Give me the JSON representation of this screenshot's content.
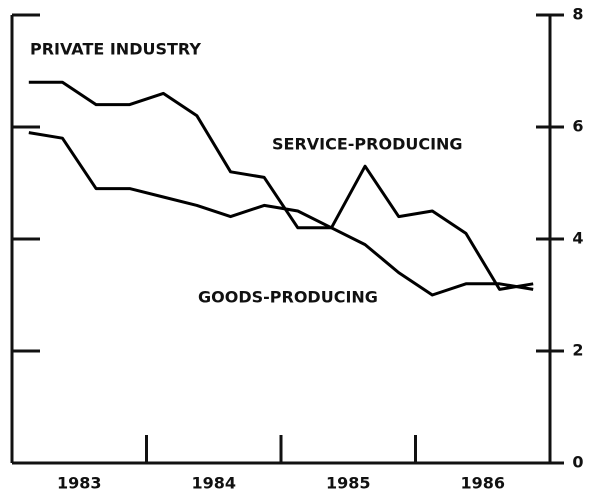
{
  "chart_data": {
    "type": "line",
    "title": "PRIVATE INDUSTRY",
    "categories": [
      null,
      null,
      null,
      null,
      null,
      null,
      null,
      null,
      null,
      null,
      null,
      null,
      null,
      null,
      null,
      null
    ],
    "x_group_labels": [
      "1983",
      "1984",
      "1985",
      "1986"
    ],
    "series": [
      {
        "name": "SERVICE-PRODUCING",
        "color": "#000000",
        "values": [
          6.8,
          6.8,
          6.4,
          6.4,
          6.6,
          6.2,
          5.2,
          5.1,
          4.2,
          4.2,
          5.3,
          4.4,
          4.5,
          4.1,
          3.1,
          3.2
        ]
      },
      {
        "name": "GOODS-PRODUCING",
        "color": "#000000",
        "values": [
          5.9,
          5.8,
          4.9,
          4.9,
          4.75,
          4.6,
          4.4,
          4.6,
          4.5,
          4.2,
          3.9,
          3.4,
          3.0,
          3.2,
          3.2,
          3.1
        ]
      }
    ],
    "ylim": [
      0,
      8
    ],
    "yticks": [
      0,
      2,
      4,
      6,
      8
    ],
    "grid": false
  }
}
